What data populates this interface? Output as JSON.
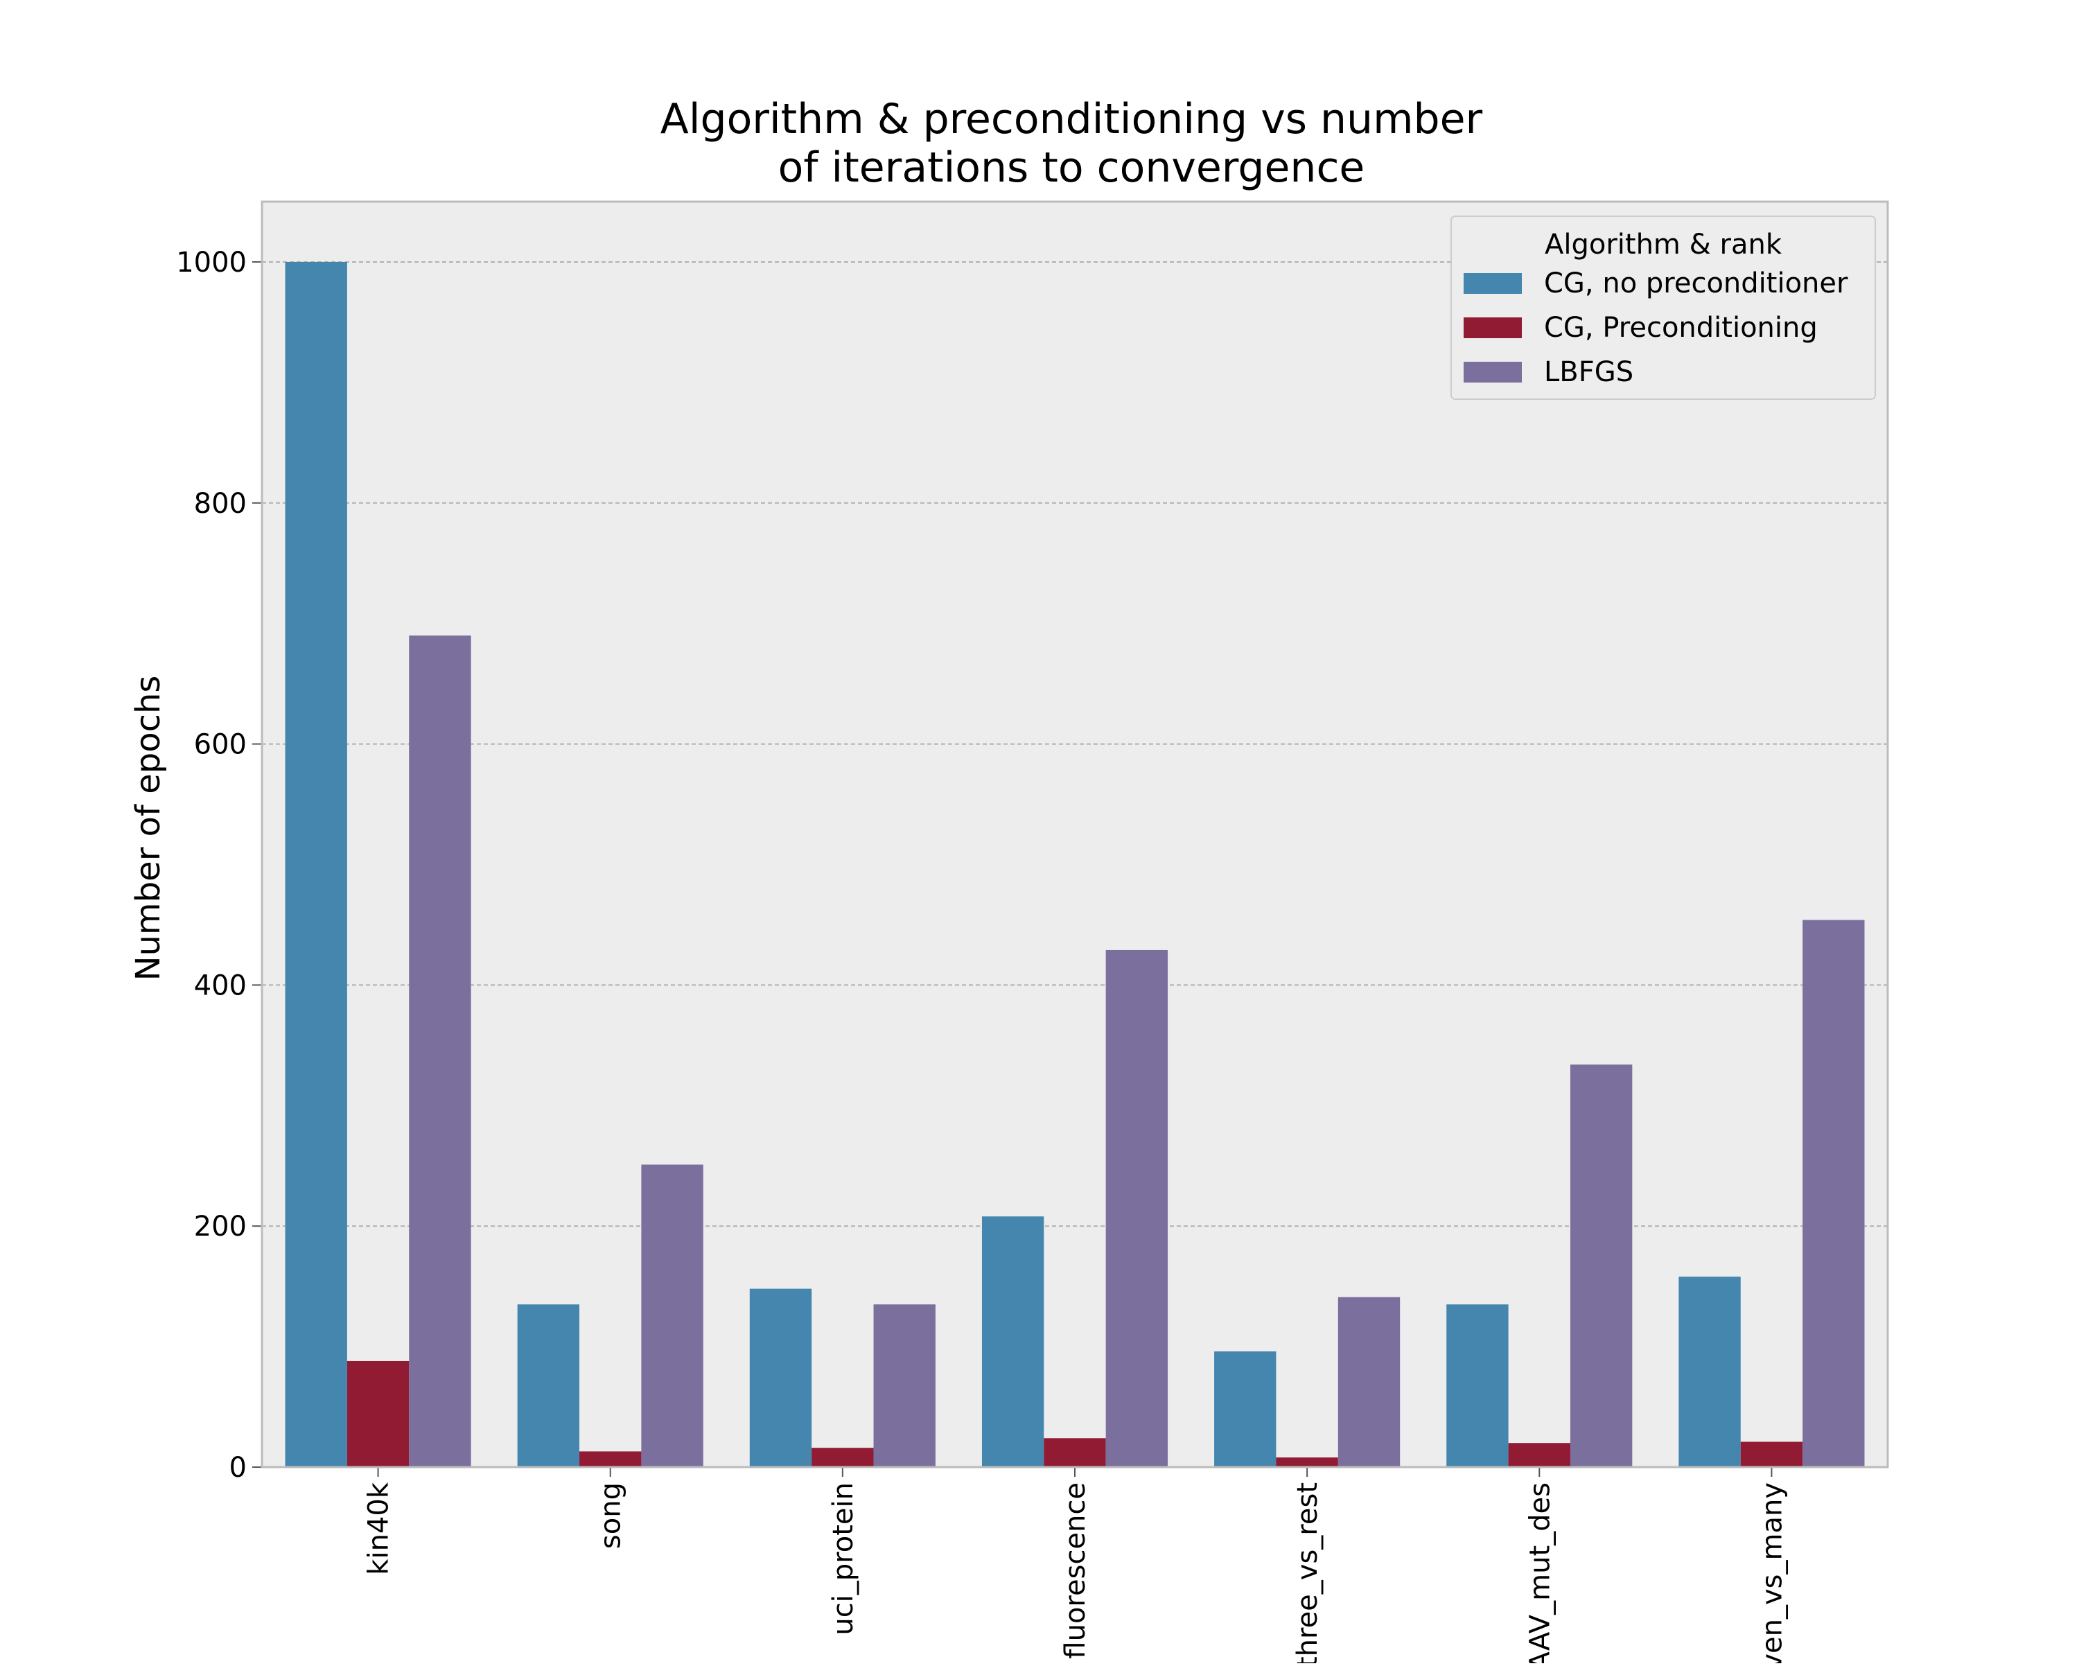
{
  "chart_data": {
    "type": "bar",
    "title_lines": [
      "Algorithm & preconditioning vs number",
      "of iterations to convergence"
    ],
    "xlabel": "",
    "ylabel": "Number of epochs",
    "ylim": [
      0,
      1050
    ],
    "yticks": [
      0,
      200,
      400,
      600,
      800,
      1000
    ],
    "grid": true,
    "legend_title": "Algorithm & rank",
    "legend_position": "top-right",
    "categories": [
      "kin40k",
      "song",
      "uci_protein",
      "fluorescence",
      "three_vs_rest",
      "AAV_mut_des",
      "ven_vs_many"
    ],
    "series": [
      {
        "name": "CG, no preconditioner",
        "color": "#4586ae",
        "values": [
          1000,
          135,
          148,
          208,
          96,
          135,
          158
        ]
      },
      {
        "name": "CG, Preconditioning",
        "color": "#921b34",
        "values": [
          88,
          13,
          16,
          24,
          8,
          20,
          21
        ]
      },
      {
        "name": "LBFGS",
        "color": "#7b6f9d",
        "values": [
          690,
          251,
          135,
          429,
          141,
          334,
          454
        ]
      }
    ],
    "colors": {
      "plot_background": "#ededed",
      "grid": "#b0b0b0",
      "axes_edge": "#bcbcbc"
    }
  }
}
